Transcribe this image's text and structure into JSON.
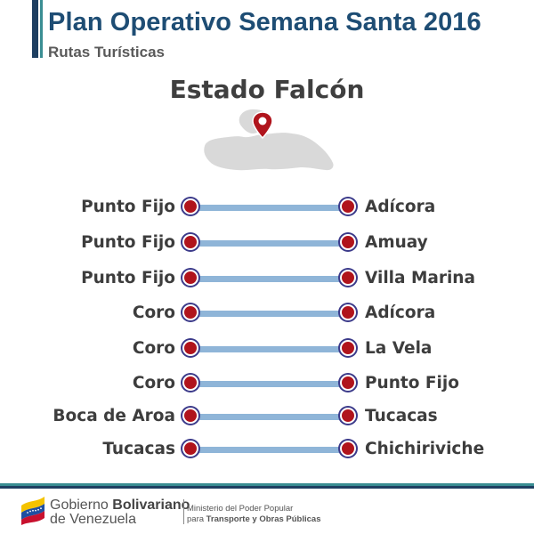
{
  "header": {
    "title": "Plan Operativo Semana Santa 2016",
    "subtitle": "Rutas Turísticas"
  },
  "state": {
    "name": "Estado Falcón",
    "map_icon": "falcon-state-map-with-location-pin",
    "pin_color": "#b0141c"
  },
  "routes": [
    {
      "from": "Punto Fijo",
      "to": "Adícora"
    },
    {
      "from": "Punto Fijo",
      "to": "Amuay"
    },
    {
      "from": "Punto Fijo",
      "to": "Villa Marina"
    },
    {
      "from": "Coro",
      "to": "Adícora"
    },
    {
      "from": "Coro",
      "to": "La Vela"
    },
    {
      "from": "Coro",
      "to": "Punto Fijo"
    },
    {
      "from": "Boca de Aroa",
      "to": "Tucacas"
    },
    {
      "from": "Tucacas",
      "to": "Chichiriviche"
    }
  ],
  "colors": {
    "title": "#1e4d74",
    "route_line": "#8fb5d8",
    "route_dot": "#b0141c",
    "accent_teal": "#3a8e93",
    "accent_navy": "#1e3f61"
  },
  "footer": {
    "gov_prefix": "Gobierno ",
    "gov_bold": "Bolivariano",
    "gov_line2": "de Venezuela",
    "ministry_line1": "Ministerio del Poder Popular",
    "ministry_prefix": "para ",
    "ministry_bold": "Transporte y Obras Públicas",
    "flag_icon": "venezuela-flag-icon"
  }
}
